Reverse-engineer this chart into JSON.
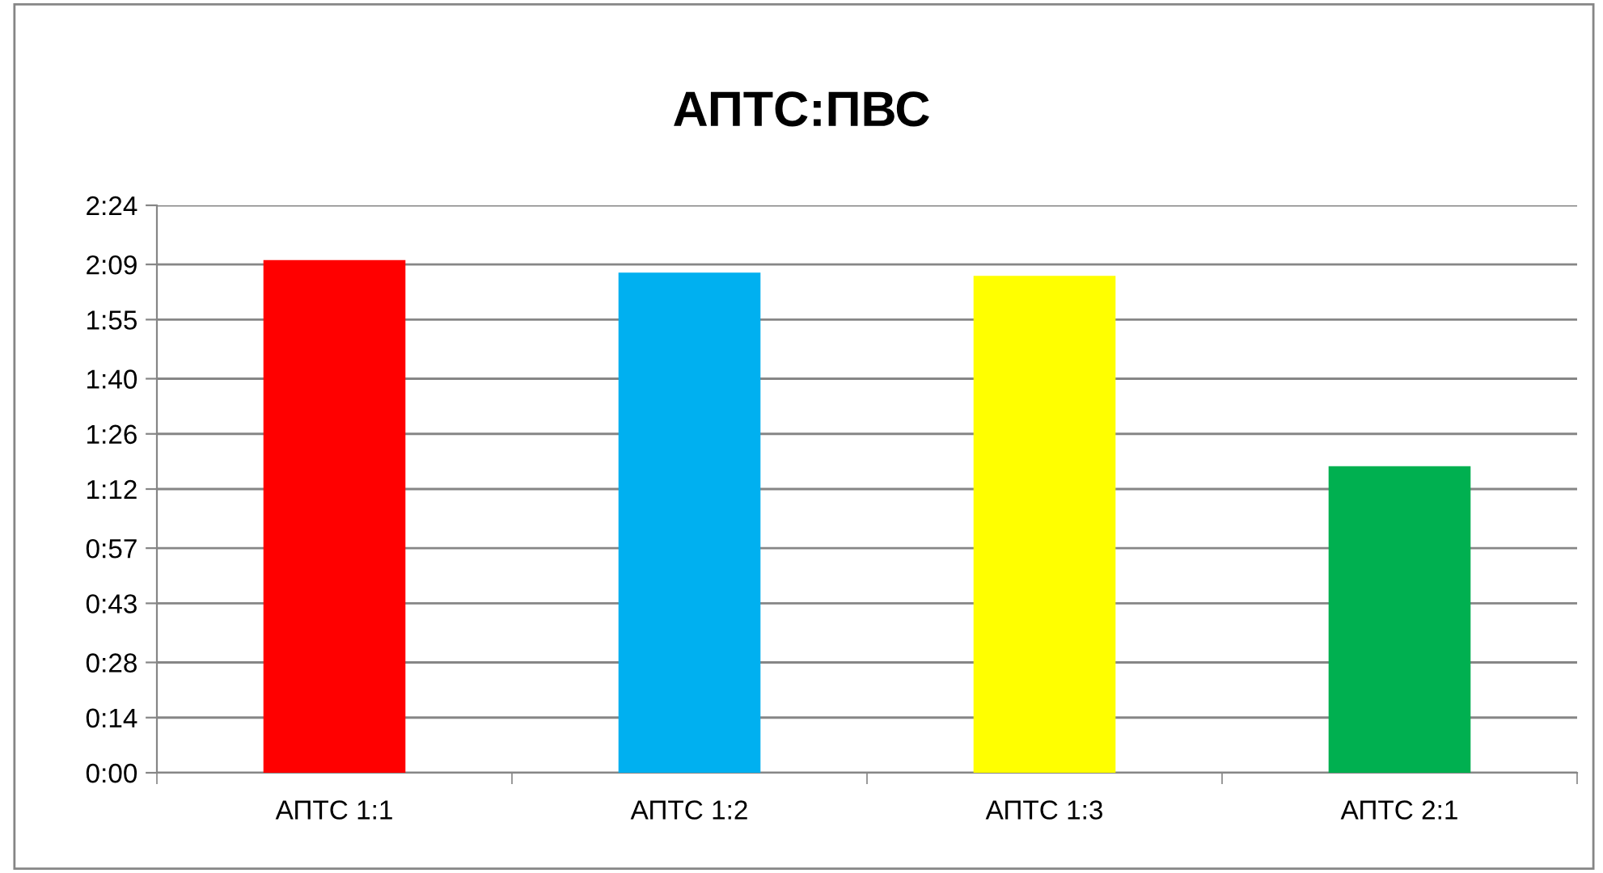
{
  "chart_data": {
    "type": "bar",
    "title": "АПТС:ПВС",
    "categories": [
      "АПТС 1:1",
      "АПТС 1:2",
      "АПТС 1:3",
      "АПТС 2:1"
    ],
    "values": [
      130.1,
      126.9,
      126.1,
      77.8
    ],
    "colors": [
      "#ff0000",
      "#00b0f0",
      "#ffff00",
      "#00b050"
    ],
    "ylim": [
      0,
      144
    ],
    "yticks": [
      {
        "value": 0,
        "label": "0:00"
      },
      {
        "value": 14,
        "label": "0:14"
      },
      {
        "value": 28,
        "label": "0:28"
      },
      {
        "value": 43,
        "label": "0:43"
      },
      {
        "value": 57,
        "label": "0:57"
      },
      {
        "value": 72,
        "label": "1:12"
      },
      {
        "value": 86,
        "label": "1:26"
      },
      {
        "value": 100,
        "label": "1:40"
      },
      {
        "value": 115,
        "label": "1:55"
      },
      {
        "value": 129,
        "label": "2:09"
      },
      {
        "value": 144,
        "label": "2:24"
      }
    ],
    "grid": "y",
    "legend": false
  }
}
